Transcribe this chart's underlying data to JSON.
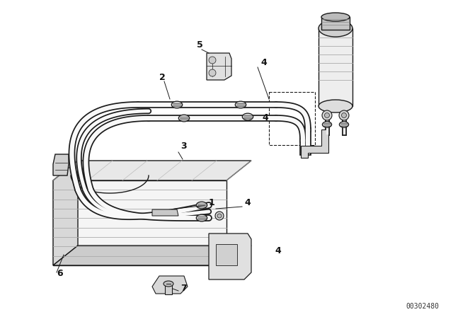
{
  "bg_color": "#ffffff",
  "line_color": "#1a1a1a",
  "part_number": "00302480"
}
